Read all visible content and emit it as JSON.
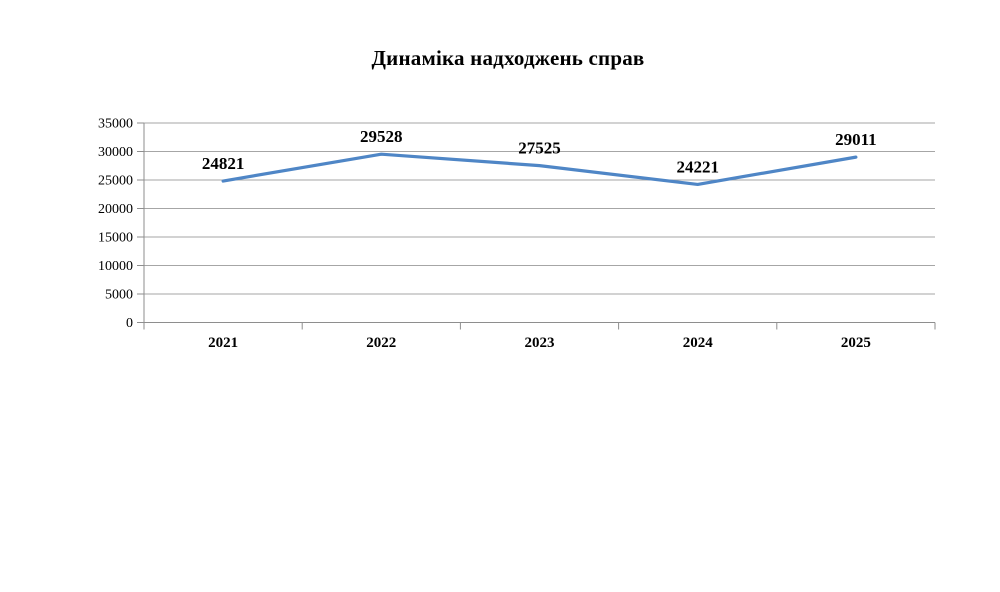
{
  "chart_data": {
    "type": "line",
    "title": "Динаміка надходжень справ",
    "categories": [
      "2021",
      "2022",
      "2023",
      "2024",
      "2025"
    ],
    "values": [
      24821,
      29528,
      27525,
      24221,
      29011
    ],
    "data_labels": [
      "24821",
      "29528",
      "27525",
      "24221",
      "29011"
    ],
    "xlabel": "",
    "ylabel": "",
    "ylim": [
      0,
      35000
    ],
    "ytick_step": 5000,
    "ytick_labels": [
      "0",
      "5000",
      "10000",
      "15000",
      "20000",
      "25000",
      "30000",
      "35000"
    ],
    "grid": "horizontal",
    "legend": "none",
    "colors": {
      "line": "#4F86C6",
      "axis": "#8E8E8E",
      "gridline": "#A6A6A6",
      "text": "#000000",
      "background": "#FFFFFF"
    }
  }
}
